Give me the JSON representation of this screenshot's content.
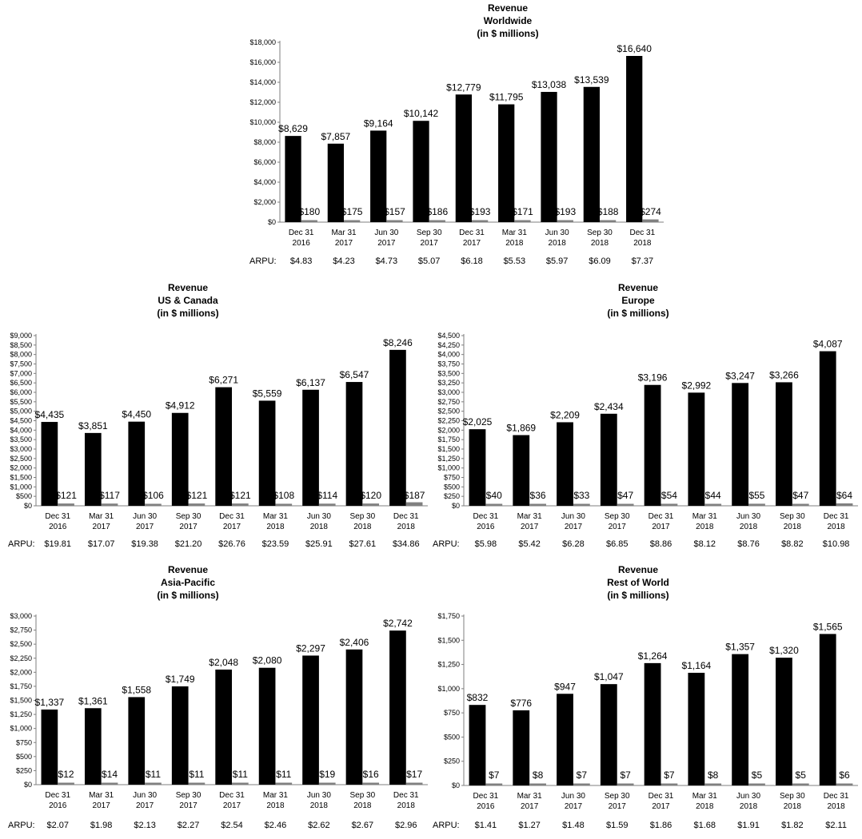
{
  "arpu_label": "ARPU:",
  "categories": [
    [
      "Dec 31",
      "2016"
    ],
    [
      "Mar 31",
      "2017"
    ],
    [
      "Jun 30",
      "2017"
    ],
    [
      "Sep 30",
      "2017"
    ],
    [
      "Dec 31",
      "2017"
    ],
    [
      "Mar 31",
      "2018"
    ],
    [
      "Jun 30",
      "2018"
    ],
    [
      "Sep 30",
      "2018"
    ],
    [
      "Dec 31",
      "2018"
    ]
  ],
  "colors": {
    "primary_bar": "#000000",
    "secondary_bar": "#808080"
  },
  "chart_data": [
    {
      "type": "bar",
      "title": [
        "Revenue",
        "Worldwide",
        "(in $ millions)"
      ],
      "ylim": [
        0,
        18000
      ],
      "yticks": [
        0,
        2000,
        4000,
        6000,
        8000,
        10000,
        12000,
        14000,
        16000,
        18000
      ],
      "series": [
        {
          "values": [
            8629,
            7857,
            9164,
            10142,
            12779,
            11795,
            13038,
            13539,
            16640
          ]
        },
        {
          "values": [
            180,
            175,
            157,
            186,
            193,
            171,
            193,
            188,
            274
          ]
        }
      ],
      "arpu": [
        "$4.83",
        "$4.23",
        "$4.73",
        "$5.07",
        "$6.18",
        "$5.53",
        "$5.97",
        "$6.09",
        "$7.37"
      ]
    },
    {
      "type": "bar",
      "title": [
        "Revenue",
        "US & Canada",
        "(in $ millions)"
      ],
      "ylim": [
        0,
        9000
      ],
      "yticks": [
        0,
        500,
        1000,
        1500,
        2000,
        2500,
        3000,
        3500,
        4000,
        4500,
        5000,
        5500,
        6000,
        6500,
        7000,
        7500,
        8000,
        8500,
        9000
      ],
      "series": [
        {
          "values": [
            4435,
            3851,
            4450,
            4912,
            6271,
            5559,
            6137,
            6547,
            8246
          ]
        },
        {
          "values": [
            121,
            117,
            106,
            121,
            121,
            108,
            114,
            120,
            187
          ]
        }
      ],
      "arpu": [
        "$19.81",
        "$17.07",
        "$19.38",
        "$21.20",
        "$26.76",
        "$23.59",
        "$25.91",
        "$27.61",
        "$34.86"
      ]
    },
    {
      "type": "bar",
      "title": [
        "Revenue",
        "Europe",
        "(in $ millions)"
      ],
      "ylim": [
        0,
        4500
      ],
      "yticks": [
        0,
        250,
        500,
        750,
        1000,
        1250,
        1500,
        1750,
        2000,
        2250,
        2500,
        2750,
        3000,
        3250,
        3500,
        3750,
        4000,
        4250,
        4500
      ],
      "series": [
        {
          "values": [
            2025,
            1869,
            2209,
            2434,
            3196,
            2992,
            3247,
            3266,
            4087
          ]
        },
        {
          "values": [
            40,
            36,
            33,
            47,
            54,
            44,
            55,
            47,
            64
          ]
        }
      ],
      "arpu": [
        "$5.98",
        "$5.42",
        "$6.28",
        "$6.85",
        "$8.86",
        "$8.12",
        "$8.76",
        "$8.82",
        "$10.98"
      ]
    },
    {
      "type": "bar",
      "title": [
        "Revenue",
        "Asia-Pacific",
        "(in $ millions)"
      ],
      "ylim": [
        0,
        3000
      ],
      "yticks": [
        0,
        250,
        500,
        750,
        1000,
        1250,
        1500,
        1750,
        2000,
        2250,
        2500,
        2750,
        3000
      ],
      "series": [
        {
          "values": [
            1337,
            1361,
            1558,
            1749,
            2048,
            2080,
            2297,
            2406,
            2742
          ]
        },
        {
          "values": [
            12,
            14,
            11,
            11,
            11,
            11,
            19,
            16,
            17
          ]
        }
      ],
      "arpu": [
        "$2.07",
        "$1.98",
        "$2.13",
        "$2.27",
        "$2.54",
        "$2.46",
        "$2.62",
        "$2.67",
        "$2.96"
      ]
    },
    {
      "type": "bar",
      "title": [
        "Revenue",
        "Rest of World",
        "(in $ millions)"
      ],
      "ylim": [
        0,
        1750
      ],
      "yticks": [
        0,
        250,
        500,
        750,
        1000,
        1250,
        1500,
        1750
      ],
      "series": [
        {
          "values": [
            832,
            776,
            947,
            1047,
            1264,
            1164,
            1357,
            1320,
            1565
          ]
        },
        {
          "values": [
            7,
            8,
            7,
            7,
            7,
            8,
            5,
            5,
            6
          ]
        }
      ],
      "arpu": [
        "$1.41",
        "$1.27",
        "$1.48",
        "$1.59",
        "$1.86",
        "$1.68",
        "$1.91",
        "$1.82",
        "$2.11"
      ]
    }
  ]
}
